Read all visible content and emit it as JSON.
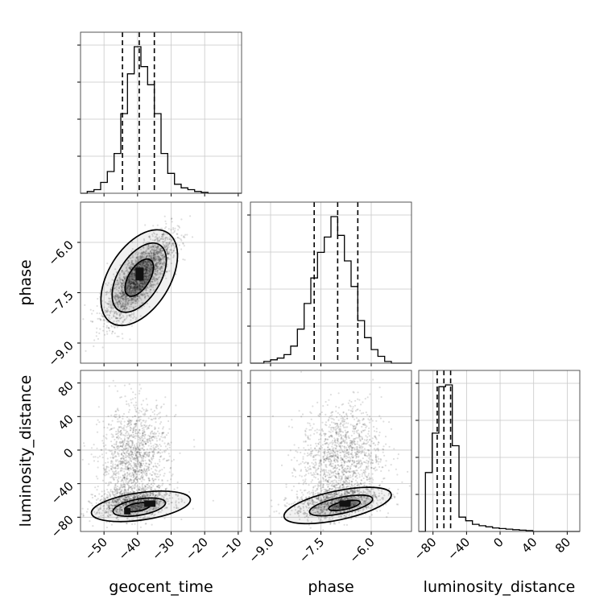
{
  "chart_data": {
    "type": "corner",
    "parameters": [
      "geocent_time",
      "phase",
      "luminosity_distance"
    ],
    "axis_labels": {
      "x": [
        "geocent_time",
        "phase",
        "luminosity_distance"
      ],
      "y": [
        "phase",
        "luminosity_distance"
      ]
    },
    "grid": true,
    "ranges": {
      "geocent_time": [
        -57,
        -9
      ],
      "phase": [
        -9.6,
        -4.8
      ],
      "luminosity_distance": [
        -97,
        95
      ]
    },
    "ticks": {
      "geocent_time": [
        -50,
        -40,
        -30,
        -20,
        -10
      ],
      "phase": [
        -9.0,
        -7.5,
        -6.0
      ],
      "luminosity_distance": [
        -80,
        -40,
        0,
        40,
        80
      ]
    },
    "tick_labels": {
      "geocent_time": [
        "−50",
        "−40",
        "−30",
        "−20",
        "−10"
      ],
      "phase": [
        "−9.0",
        "−7.5",
        "−6.0"
      ],
      "luminosity_distance": [
        "−80",
        "−40",
        "0",
        "40",
        "80"
      ]
    },
    "quantiles": {
      "geocent_time": [
        -44.5,
        -39.5,
        -35.0
      ],
      "phase": [
        -7.7,
        -7.0,
        -6.4
      ],
      "luminosity_distance": [
        -75.0,
        -67.0,
        -59.0
      ]
    },
    "histograms": {
      "geocent_time": {
        "edges": [
          -57,
          -55,
          -53,
          -51,
          -49,
          -47,
          -45,
          -43,
          -41,
          -39,
          -37,
          -35,
          -33,
          -31,
          -29,
          -27,
          -25,
          -23,
          -21,
          -19,
          -17,
          -15,
          -13,
          -11,
          -9
        ],
        "counts": [
          0,
          1,
          2,
          6,
          12,
          22,
          44,
          66,
          81,
          70,
          60,
          44,
          22,
          11,
          5,
          3,
          2,
          1,
          0.5,
          0,
          0,
          0,
          0,
          0
        ]
      },
      "phase": {
        "edges": [
          -9.6,
          -9.4,
          -9.2,
          -9.0,
          -8.8,
          -8.6,
          -8.4,
          -8.2,
          -8.0,
          -7.8,
          -7.6,
          -7.4,
          -7.2,
          -7.0,
          -6.8,
          -6.6,
          -6.4,
          -6.2,
          -6.0,
          -5.8,
          -5.6,
          -5.4,
          -5.2,
          -5.0,
          -4.8
        ],
        "counts": [
          0,
          0,
          1,
          2,
          3,
          5,
          10,
          20,
          35,
          50,
          65,
          74,
          86,
          75,
          60,
          45,
          25,
          15,
          8,
          4,
          1,
          0,
          0,
          0
        ]
      },
      "luminosity_distance": {
        "edges": [
          -97,
          -89,
          -81,
          -73,
          -65,
          -57,
          -49,
          -41,
          -33,
          -25,
          -17,
          -9,
          -1,
          7,
          15,
          23,
          31,
          39,
          47,
          55,
          63,
          71,
          79,
          87,
          95
        ],
        "counts": [
          0,
          33,
          55,
          81,
          82,
          48,
          8,
          6,
          4,
          3.2,
          2.6,
          2.0,
          1.6,
          1.3,
          1.0,
          0.7,
          0.5,
          0,
          0,
          0,
          0,
          0,
          0,
          0
        ]
      }
    }
  }
}
